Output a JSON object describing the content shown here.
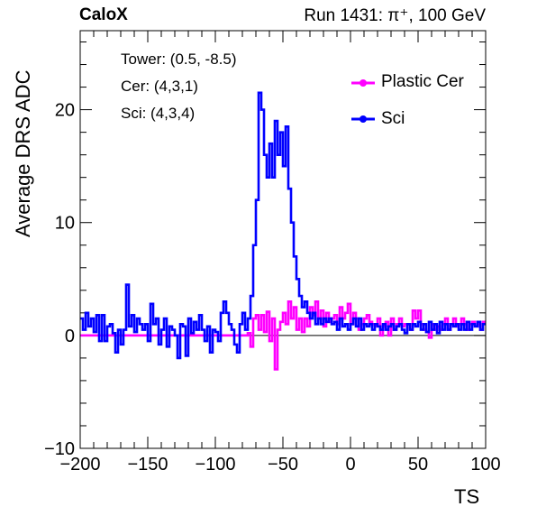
{
  "header": {
    "experiment": "CaloX",
    "run_info": "Run 1431: π⁺, 100 GeV"
  },
  "annotations": {
    "tower": "Tower: (0.5, -8.5)",
    "cer": "Cer: (4,3,1)",
    "sci": "Sci: (4,3,4)"
  },
  "colors": {
    "plastic_cer": "#ff00ff",
    "sci": "#0000ff"
  },
  "chart_data": {
    "type": "line",
    "title": "",
    "xlabel": "TS",
    "ylabel": "Average DRS ADC",
    "xlim": [
      -200,
      100
    ],
    "ylim": [
      -10,
      27
    ],
    "x_ticks": [
      "−200",
      "−150",
      "−100",
      "−50",
      "0",
      "50",
      "100"
    ],
    "y_ticks": [
      "−10",
      "0",
      "10",
      "20"
    ],
    "x_tick_values": [
      -200,
      -150,
      -100,
      -50,
      0,
      50,
      100
    ],
    "y_tick_values": [
      -10,
      0,
      10,
      20
    ],
    "grid": false,
    "legend_position": "top-right",
    "step_size": 2,
    "series": [
      {
        "name": "Plastic Cer",
        "color": "#ff00ff",
        "x": [
          -200,
          -76,
          -74,
          -72,
          -70,
          -68,
          -66,
          -64,
          -62,
          -60,
          -58,
          -56,
          -54,
          -52,
          -50,
          -48,
          -46,
          -44,
          -42,
          -40,
          -38,
          -36,
          -34,
          -32,
          -30,
          -28,
          -26,
          -24,
          -22,
          -20,
          -18,
          -16,
          -14,
          -12,
          -10,
          -8,
          -6,
          -4,
          -2,
          0,
          2,
          4,
          6,
          8,
          10,
          12,
          14,
          16,
          18,
          20,
          22,
          24,
          26,
          28,
          30,
          32,
          34,
          36,
          38,
          40,
          42,
          44,
          46,
          48,
          50,
          52,
          54,
          56,
          58,
          60,
          62,
          64,
          66,
          68,
          70,
          72,
          74,
          76,
          78,
          80,
          82,
          84,
          86,
          88,
          90,
          92,
          94,
          96,
          98
        ],
        "y": [
          0.0,
          0.2,
          -1.0,
          1.5,
          1.8,
          0.5,
          1.8,
          0.3,
          2.1,
          -0.5,
          1.5,
          -3.0,
          0.5,
          1.2,
          2.0,
          1.0,
          3.0,
          1.5,
          2.5,
          0.5,
          1.5,
          0.3,
          1.5,
          0.8,
          2.5,
          1.8,
          3.0,
          1.5,
          2.2,
          0.8,
          2.0,
          1.2,
          1.5,
          1.8,
          1.0,
          2.5,
          1.5,
          2.0,
          2.8,
          1.0,
          2.0,
          1.5,
          0.5,
          1.0,
          1.5,
          1.8,
          1.2,
          1.0,
          0.8,
          1.5,
          0.0,
          0.8,
          1.2,
          0.0,
          1.5,
          0.5,
          1.0,
          1.5,
          0.8,
          1.0,
          1.0,
          0.5,
          2.2,
          1.5,
          2.2,
          1.0,
          0.5,
          0.3,
          -0.2,
          1.0,
          0.5,
          0.8,
          0.5,
          1.0,
          1.5,
          0.5,
          1.0,
          1.5,
          0.8,
          1.0,
          1.5,
          1.0,
          0.5,
          1.0,
          1.2,
          0.8,
          1.0,
          0.5,
          1.2
        ]
      },
      {
        "name": "Sci",
        "color": "#0000ff",
        "x": [
          -200,
          -198,
          -196,
          -194,
          -192,
          -190,
          -188,
          -186,
          -184,
          -182,
          -180,
          -178,
          -176,
          -174,
          -172,
          -170,
          -168,
          -166,
          -164,
          -162,
          -160,
          -158,
          -156,
          -154,
          -152,
          -150,
          -148,
          -146,
          -144,
          -142,
          -140,
          -138,
          -136,
          -134,
          -132,
          -130,
          -128,
          -126,
          -124,
          -122,
          -120,
          -118,
          -116,
          -114,
          -112,
          -110,
          -108,
          -106,
          -104,
          -102,
          -100,
          -98,
          -96,
          -94,
          -92,
          -90,
          -88,
          -86,
          -84,
          -82,
          -80,
          -78,
          -76,
          -74,
          -72,
          -70,
          -68,
          -66,
          -64,
          -62,
          -60,
          -58,
          -56,
          -54,
          -52,
          -50,
          -48,
          -46,
          -44,
          -42,
          -40,
          -38,
          -36,
          -34,
          -32,
          -30,
          -28,
          -26,
          -24,
          -22,
          -20,
          -18,
          -16,
          -14,
          -12,
          -10,
          -8,
          -6,
          -4,
          -2,
          0,
          2,
          4,
          6,
          8,
          10,
          12,
          14,
          16,
          18,
          20,
          22,
          24,
          26,
          28,
          30,
          32,
          34,
          36,
          38,
          40,
          42,
          44,
          46,
          48,
          50,
          52,
          54,
          56,
          58,
          60,
          62,
          64,
          66,
          68,
          70,
          72,
          74,
          76,
          78,
          80,
          82,
          84,
          86,
          88,
          90,
          92,
          94,
          96,
          98
        ],
        "y": [
          1.5,
          0.5,
          2.0,
          0.8,
          1.5,
          0.3,
          1.8,
          -0.5,
          1.8,
          -0.5,
          0.8,
          1.0,
          0.2,
          -1.5,
          0.5,
          -0.8,
          0.5,
          4.5,
          0.8,
          1.8,
          0.3,
          1.5,
          1.0,
          0.5,
          1.0,
          -0.5,
          2.8,
          1.0,
          1.5,
          -0.8,
          0.5,
          1.5,
          -1.0,
          0.8,
          0.5,
          0.0,
          -2.0,
          1.0,
          0.8,
          -1.8,
          1.5,
          0.2,
          1.2,
          0.5,
          1.8,
          0.5,
          -0.5,
          0.8,
          -1.5,
          0.5,
          0.3,
          -0.5,
          2.0,
          3.0,
          2.0,
          1.0,
          0.5,
          -0.8,
          -1.5,
          1.0,
          2.0,
          0.5,
          1.5,
          3.5,
          8.0,
          12.0,
          21.5,
          20.0,
          16.0,
          14.0,
          17.0,
          14.0,
          19.0,
          16.0,
          18.0,
          15.0,
          18.5,
          13.0,
          10.0,
          7.0,
          5.0,
          3.5,
          2.5,
          3.0,
          2.0,
          1.5,
          2.0,
          1.0,
          1.5,
          1.0,
          1.5,
          1.2,
          1.5,
          1.0,
          1.2,
          0.5,
          1.5,
          0.8,
          1.0,
          0.5,
          1.0,
          1.5,
          0.8,
          1.5,
          0.5,
          1.0,
          0.8,
          1.0,
          0.5,
          1.0,
          0.8,
          0.5,
          1.0,
          0.5,
          0.8,
          1.0,
          0.5,
          0.8,
          1.0,
          0.5,
          0.2,
          1.0,
          0.5,
          1.0,
          0.8,
          1.2,
          0.5,
          1.0,
          0.3,
          1.2,
          0.5,
          1.0,
          0.2,
          1.2,
          0.5,
          1.0,
          0.5,
          1.0,
          0.8,
          1.0,
          0.5,
          1.0,
          0.5,
          1.2,
          0.5,
          1.0,
          0.8,
          1.2,
          0.5,
          1.0
        ]
      }
    ]
  }
}
